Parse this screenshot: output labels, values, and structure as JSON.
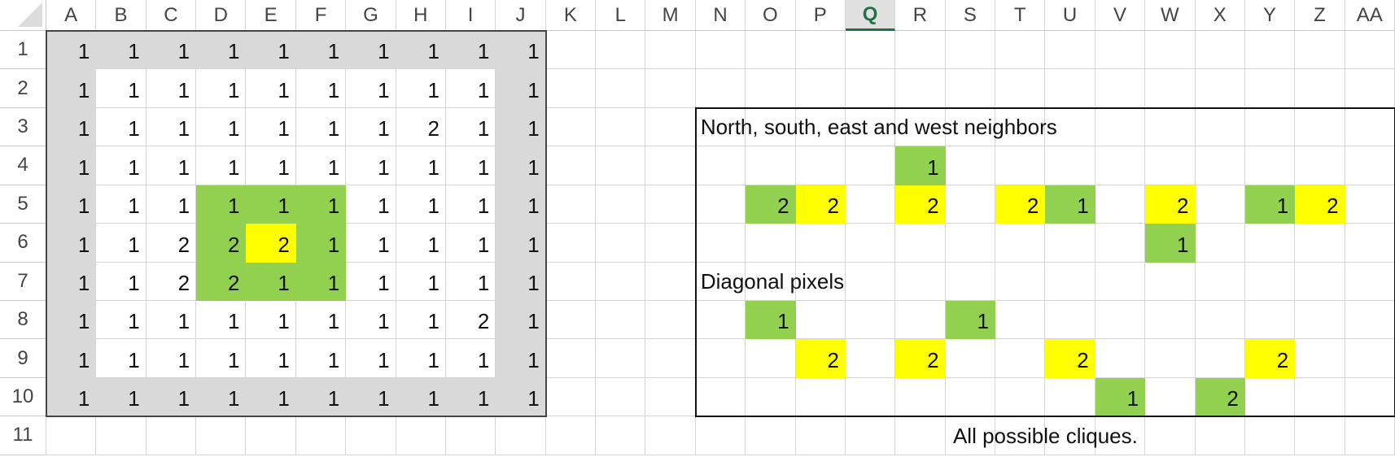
{
  "columns": [
    "A",
    "B",
    "C",
    "D",
    "E",
    "F",
    "G",
    "H",
    "I",
    "J",
    "K",
    "L",
    "M",
    "N",
    "O",
    "P",
    "Q",
    "R",
    "S",
    "T",
    "U",
    "V",
    "W",
    "X",
    "Y",
    "Z",
    "AA"
  ],
  "rows": [
    "1",
    "2",
    "3",
    "4",
    "5",
    "6",
    "7",
    "8",
    "9",
    "10",
    "11"
  ],
  "selected_column": "Q",
  "colors": {
    "gray": "#d9d9d9",
    "green": "#92d050",
    "yellow": "#ffff00",
    "white": "#ffffff",
    "selected_header": "#217346"
  },
  "left_grid": {
    "values": [
      [
        "1",
        "1",
        "1",
        "1",
        "1",
        "1",
        "1",
        "1",
        "1",
        "1"
      ],
      [
        "1",
        "1",
        "1",
        "1",
        "1",
        "1",
        "1",
        "1",
        "1",
        "1"
      ],
      [
        "1",
        "1",
        "1",
        "1",
        "1",
        "1",
        "1",
        "2",
        "1",
        "1"
      ],
      [
        "1",
        "1",
        "1",
        "1",
        "1",
        "1",
        "1",
        "1",
        "1",
        "1"
      ],
      [
        "1",
        "1",
        "1",
        "1",
        "1",
        "1",
        "1",
        "1",
        "1",
        "1"
      ],
      [
        "1",
        "1",
        "2",
        "2",
        "2",
        "1",
        "1",
        "1",
        "1",
        "1"
      ],
      [
        "1",
        "1",
        "2",
        "2",
        "1",
        "1",
        "1",
        "1",
        "1",
        "1"
      ],
      [
        "1",
        "1",
        "1",
        "1",
        "1",
        "1",
        "1",
        "1",
        "2",
        "1"
      ],
      [
        "1",
        "1",
        "1",
        "1",
        "1",
        "1",
        "1",
        "1",
        "1",
        "1"
      ],
      [
        "1",
        "1",
        "1",
        "1",
        "1",
        "1",
        "1",
        "1",
        "1",
        "1"
      ]
    ],
    "green_range": "D5:F7",
    "yellow_cell": "E6",
    "border_fill": "gray"
  },
  "right_panel": {
    "title_nsew": "North, south, east and west neighbors",
    "title_diagonal": "Diagonal pixels",
    "caption": "All possible cliques.",
    "cells": [
      {
        "cell": "R4",
        "value": "1",
        "fill": "green"
      },
      {
        "cell": "O5",
        "value": "2",
        "fill": "green"
      },
      {
        "cell": "P5",
        "value": "2",
        "fill": "yellow"
      },
      {
        "cell": "R5",
        "value": "2",
        "fill": "yellow"
      },
      {
        "cell": "T5",
        "value": "2",
        "fill": "yellow"
      },
      {
        "cell": "U5",
        "value": "1",
        "fill": "green"
      },
      {
        "cell": "W5",
        "value": "2",
        "fill": "yellow"
      },
      {
        "cell": "Y5",
        "value": "1",
        "fill": "green"
      },
      {
        "cell": "Z5",
        "value": "2",
        "fill": "yellow"
      },
      {
        "cell": "W6",
        "value": "1",
        "fill": "green"
      },
      {
        "cell": "O8",
        "value": "1",
        "fill": "green"
      },
      {
        "cell": "S8",
        "value": "1",
        "fill": "green"
      },
      {
        "cell": "P9",
        "value": "2",
        "fill": "yellow"
      },
      {
        "cell": "R9",
        "value": "2",
        "fill": "yellow"
      },
      {
        "cell": "U9",
        "value": "2",
        "fill": "yellow"
      },
      {
        "cell": "Y9",
        "value": "2",
        "fill": "yellow"
      },
      {
        "cell": "V10",
        "value": "1",
        "fill": "green"
      },
      {
        "cell": "X10",
        "value": "2",
        "fill": "green"
      }
    ]
  }
}
